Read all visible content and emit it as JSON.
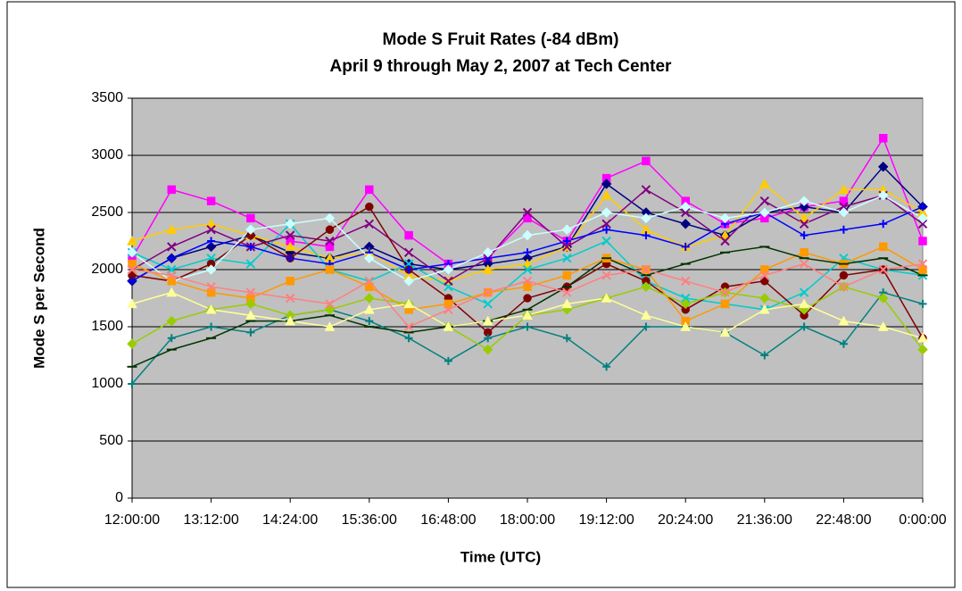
{
  "chart_data": {
    "type": "line",
    "title": "Mode S Fruit Rates (-84 dBm)",
    "subtitle": "April 9 through May 2, 2007 at Tech Center",
    "x_label": "Time (UTC)",
    "y_label": "Mode S per Second",
    "x": [
      12,
      12.6,
      13.2,
      13.8,
      14.4,
      15,
      15.6,
      16.2,
      16.8,
      17.4,
      18,
      18.6,
      19.2,
      19.8,
      20.4,
      21,
      21.6,
      22.2,
      22.8,
      23.4,
      24
    ],
    "xlim": [
      12,
      24
    ],
    "xticks": [
      {
        "value": 12,
        "label": "12:00:00"
      },
      {
        "value": 13.2,
        "label": "13:12:00"
      },
      {
        "value": 14.4,
        "label": "14:24:00"
      },
      {
        "value": 15.6,
        "label": "15:36:00"
      },
      {
        "value": 16.8,
        "label": "16:48:00"
      },
      {
        "value": 18,
        "label": "18:00:00"
      },
      {
        "value": 19.2,
        "label": "19:12:00"
      },
      {
        "value": 20.4,
        "label": "20:24:00"
      },
      {
        "value": 21.6,
        "label": "21:36:00"
      },
      {
        "value": 22.8,
        "label": "22:48:00"
      },
      {
        "value": 24,
        "label": "0:00:00"
      }
    ],
    "ylim": [
      0,
      3500
    ],
    "yticks": [
      0,
      500,
      1000,
      1500,
      2000,
      2500,
      3000,
      3500
    ],
    "grid": true,
    "series": [
      {
        "color": "#ff00ff",
        "marker": "square",
        "values": [
          2100,
          2700,
          2600,
          2450,
          2250,
          2200,
          2700,
          2300,
          2050,
          2100,
          2450,
          2250,
          2800,
          2950,
          2600,
          2400,
          2450,
          2550,
          2600,
          3150,
          2250
        ]
      },
      {
        "color": "#000080",
        "marker": "diamond",
        "values": [
          1900,
          2100,
          2200,
          2300,
          2150,
          2100,
          2200,
          2050,
          2000,
          2050,
          2100,
          2200,
          2750,
          2500,
          2400,
          2300,
          2500,
          2550,
          2500,
          2900,
          2550
        ]
      },
      {
        "color": "#ffcc00",
        "marker": "triangle",
        "values": [
          2250,
          2350,
          2400,
          2300,
          2200,
          2100,
          2150,
          1950,
          1900,
          2000,
          2050,
          2200,
          2650,
          2350,
          2200,
          2300,
          2750,
          2450,
          2700,
          2700,
          2500
        ]
      },
      {
        "color": "#00cccc",
        "marker": "cross",
        "values": [
          2150,
          2000,
          2100,
          2050,
          2400,
          2000,
          1900,
          2050,
          1850,
          1700,
          2000,
          2100,
          2250,
          1900,
          1750,
          1700,
          1650,
          1800,
          2100,
          2000,
          1950
        ]
      },
      {
        "color": "#800080",
        "marker": "cross",
        "values": [
          2000,
          2200,
          2350,
          2200,
          2300,
          2250,
          2400,
          2150,
          1900,
          2100,
          2500,
          2200,
          2400,
          2700,
          2500,
          2250,
          2600,
          2400,
          2550,
          2650,
          2400
        ]
      },
      {
        "color": "#800000",
        "marker": "circle",
        "values": [
          1950,
          1900,
          2050,
          2300,
          2100,
          2350,
          2550,
          2000,
          1750,
          1450,
          1750,
          1850,
          2050,
          1900,
          1650,
          1850,
          1900,
          1600,
          1950,
          2000,
          1400
        ]
      },
      {
        "color": "#008080",
        "marker": "plus",
        "values": [
          1000,
          1400,
          1500,
          1450,
          1600,
          1650,
          1550,
          1400,
          1200,
          1400,
          1500,
          1400,
          1150,
          1500,
          1500,
          1450,
          1250,
          1500,
          1350,
          1800,
          1700
        ]
      },
      {
        "color": "#0000ff",
        "marker": "plus",
        "values": [
          1900,
          2100,
          2250,
          2200,
          2100,
          2050,
          2150,
          2000,
          2050,
          2100,
          2150,
          2250,
          2350,
          2300,
          2200,
          2400,
          2500,
          2300,
          2350,
          2400,
          2550
        ]
      },
      {
        "color": "#ccffff",
        "marker": "diamond",
        "values": [
          2150,
          1900,
          2000,
          2350,
          2400,
          2450,
          2100,
          1900,
          2000,
          2150,
          2300,
          2350,
          2500,
          2450,
          2550,
          2450,
          2500,
          2600,
          2500,
          2650,
          2450
        ]
      },
      {
        "color": "#ff9900",
        "marker": "square",
        "values": [
          2050,
          1900,
          1800,
          1750,
          1900,
          2000,
          1850,
          1650,
          1700,
          1800,
          1850,
          1950,
          2100,
          2000,
          1550,
          1700,
          2000,
          2150,
          2050,
          2200,
          2000
        ]
      },
      {
        "color": "#99cc00",
        "marker": "diamond",
        "values": [
          1350,
          1550,
          1650,
          1700,
          1600,
          1650,
          1750,
          1700,
          1500,
          1300,
          1600,
          1650,
          1750,
          1850,
          1700,
          1800,
          1750,
          1650,
          1850,
          1750,
          1300
        ]
      },
      {
        "color": "#003300",
        "marker": "dash",
        "values": [
          1150,
          1300,
          1400,
          1550,
          1550,
          1600,
          1500,
          1450,
          1500,
          1550,
          1650,
          1850,
          2100,
          1950,
          2050,
          2150,
          2200,
          2100,
          2050,
          2100,
          1950
        ]
      },
      {
        "color": "#ffff99",
        "marker": "triangle",
        "values": [
          1700,
          1800,
          1650,
          1600,
          1550,
          1500,
          1650,
          1700,
          1500,
          1550,
          1600,
          1700,
          1750,
          1600,
          1500,
          1450,
          1650,
          1700,
          1550,
          1500,
          1400
        ]
      },
      {
        "color": "#ff8080",
        "marker": "cross",
        "values": [
          2000,
          1950,
          1850,
          1800,
          1750,
          1700,
          1900,
          1500,
          1650,
          1800,
          1900,
          1800,
          1950,
          2000,
          1900,
          1800,
          1950,
          2050,
          1850,
          2000,
          2050
        ]
      }
    ]
  }
}
